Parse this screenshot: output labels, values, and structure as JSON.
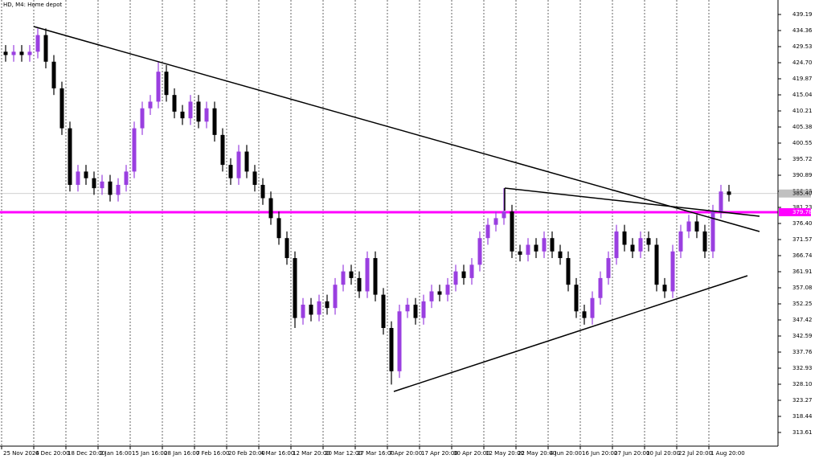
{
  "chart_data": {
    "type": "candlestick",
    "title": "HD, M4: Home depot",
    "categories": [
      "25 Nov 2024",
      null,
      null,
      null,
      "6 Dec 20:00",
      null,
      null,
      null,
      "18 Dec 20:00",
      null,
      null,
      null,
      "2 Jan 16:00",
      null,
      null,
      null,
      "15 Jan 16:00",
      null,
      null,
      null,
      "28 Jan 16:00",
      null,
      null,
      null,
      "7 Feb 16:00",
      null,
      null,
      null,
      "20 Feb 20:00",
      null,
      null,
      null,
      "4 Mar 16:00",
      null,
      null,
      null,
      "12 Mar 20:00",
      null,
      null,
      null,
      "20 Mar 12:00",
      null,
      null,
      null,
      "27 Mar 16:00",
      null,
      null,
      null,
      "7 Apr 20:00",
      null,
      null,
      null,
      "17 Apr 20:00",
      null,
      null,
      null,
      "30 Apr 20:00",
      null,
      null,
      null,
      "12 May 20:00",
      null,
      null,
      null,
      "22 May 20:00",
      null,
      null,
      null,
      "4 Jun 20:00",
      null,
      null,
      null,
      "16 Jun 20:00",
      null,
      null,
      null,
      "27 Jun 20:00",
      null,
      null,
      null,
      "10 Jul 20:00",
      null,
      null,
      null,
      "22 Jul 20:00",
      null,
      null,
      null,
      "1 Aug 20:00",
      null,
      null
    ],
    "open": [
      428,
      427,
      428,
      427,
      428,
      433,
      425,
      417,
      405,
      388,
      392,
      390,
      387,
      389,
      385,
      388,
      392,
      405,
      411,
      413,
      422,
      415,
      410,
      408,
      413,
      407,
      411,
      403,
      394,
      390,
      398,
      392,
      388,
      384,
      378,
      372,
      366,
      348,
      352,
      349,
      353,
      351,
      358,
      362,
      360,
      356,
      366,
      355,
      345,
      332,
      350,
      352,
      348,
      353,
      356,
      355,
      358,
      362,
      360,
      364,
      372,
      376,
      378,
      380,
      368,
      367,
      370,
      368,
      372,
      368,
      366,
      358,
      350,
      348,
      354,
      360,
      366,
      374,
      370,
      368,
      372,
      370,
      358,
      356,
      368,
      374,
      377,
      374,
      368,
      380,
      386
    ],
    "high": [
      430,
      430,
      430,
      430,
      435,
      435,
      427,
      419,
      407,
      394,
      394,
      392,
      391,
      391,
      390,
      394,
      407,
      413,
      415,
      425,
      424,
      417,
      412,
      415,
      415,
      413,
      413,
      405,
      396,
      400,
      400,
      394,
      390,
      386,
      380,
      374,
      368,
      354,
      354,
      355,
      355,
      360,
      364,
      364,
      362,
      368,
      368,
      357,
      347,
      352,
      354,
      354,
      355,
      358,
      358,
      360,
      364,
      364,
      366,
      374,
      378,
      380,
      387,
      382,
      370,
      372,
      372,
      374,
      374,
      370,
      368,
      360,
      352,
      356,
      362,
      368,
      376,
      376,
      372,
      374,
      374,
      372,
      360,
      370,
      376,
      379,
      379,
      376,
      382,
      388,
      388
    ],
    "low": [
      425,
      425,
      425,
      425,
      426,
      423,
      415,
      403,
      386,
      386,
      388,
      385,
      385,
      383,
      383,
      386,
      390,
      403,
      409,
      411,
      413,
      408,
      406,
      406,
      405,
      405,
      401,
      392,
      388,
      388,
      390,
      386,
      382,
      376,
      370,
      364,
      345,
      346,
      347,
      347,
      349,
      349,
      356,
      358,
      354,
      354,
      353,
      343,
      328,
      330,
      348,
      346,
      346,
      351,
      353,
      353,
      356,
      358,
      358,
      362,
      370,
      374,
      376,
      366,
      365,
      365,
      366,
      366,
      366,
      364,
      356,
      348,
      346,
      346,
      352,
      358,
      364,
      368,
      366,
      366,
      368,
      356,
      354,
      354,
      366,
      372,
      372,
      366,
      366,
      378,
      383
    ],
    "close": [
      427,
      428,
      427,
      428,
      433,
      425,
      417,
      405,
      388,
      392,
      390,
      387,
      389,
      385,
      388,
      392,
      405,
      411,
      413,
      422,
      415,
      410,
      408,
      413,
      407,
      411,
      403,
      394,
      390,
      398,
      392,
      388,
      384,
      378,
      372,
      366,
      348,
      352,
      349,
      353,
      351,
      358,
      362,
      360,
      356,
      366,
      355,
      345,
      332,
      350,
      352,
      348,
      353,
      356,
      355,
      358,
      362,
      360,
      364,
      372,
      376,
      378,
      380,
      368,
      367,
      370,
      368,
      372,
      368,
      366,
      358,
      350,
      348,
      354,
      360,
      366,
      374,
      370,
      368,
      372,
      370,
      358,
      356,
      368,
      374,
      377,
      374,
      368,
      380,
      386,
      385
    ],
    "up_color": "#9a3fe0",
    "down_color": "#000000",
    "ylim": [
      309.5,
      443.54
    ],
    "yticks": [
      439.19,
      434.36,
      429.53,
      {
        "value": 424.7,
        "label": "424.70"
      },
      419.87,
      415.04,
      410.21,
      405.38,
      {
        "value": 400.55,
        "label": "400.55"
      },
      395.72,
      390.89,
      386.06,
      381.23,
      {
        "value": 376.4,
        "label": "376.40"
      },
      371.57,
      366.74,
      361.91,
      357.08,
      352.25,
      347.42,
      342.59,
      337.76,
      332.93,
      {
        "value": 328.1,
        "label": "328.10"
      },
      323.27,
      318.44,
      313.61
    ],
    "levels": [
      {
        "value": 379.78,
        "label": "379.78",
        "color": "#ff00ff"
      },
      {
        "value": 385.4,
        "label": "385.40",
        "color": "#c0c0c0"
      }
    ],
    "grid": true
  }
}
